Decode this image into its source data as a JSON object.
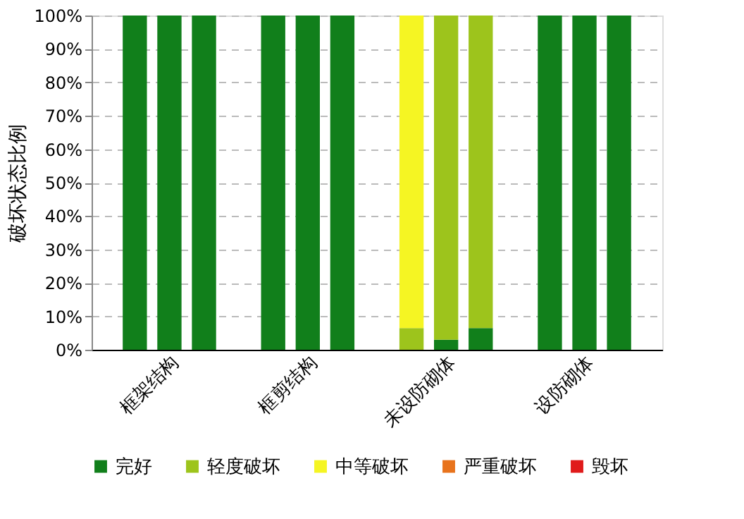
{
  "chart_data": {
    "type": "bar",
    "stacked": true,
    "ylabel": "破坏状态比例",
    "categories": [
      null,
      "框架结构",
      null,
      null,
      null,
      "框剪结构",
      null,
      null,
      null,
      "未设防砌体",
      null,
      null,
      null,
      "设防砌体",
      null
    ],
    "series": [
      {
        "name": "完好",
        "color": "#117f1b",
        "values": [
          100,
          100,
          100,
          null,
          100,
          100,
          100,
          null,
          0,
          3,
          6.5,
          null,
          100,
          100,
          100
        ]
      },
      {
        "name": "轻度破坏",
        "color": "#9dc41c",
        "values": [
          0,
          0,
          0,
          null,
          0,
          0,
          0,
          null,
          6.5,
          97,
          93.5,
          null,
          0,
          0,
          0
        ]
      },
      {
        "name": "中等破坏",
        "color": "#f5f523",
        "values": [
          0,
          0,
          0,
          null,
          0,
          0,
          0,
          null,
          93.5,
          0,
          0,
          null,
          0,
          0,
          0
        ]
      },
      {
        "name": "严重破坏",
        "color": "#e8731c",
        "values": [
          0,
          0,
          0,
          null,
          0,
          0,
          0,
          null,
          0,
          0,
          0,
          null,
          0,
          0,
          0
        ]
      },
      {
        "name": "毁坏",
        "color": "#e01b1b",
        "values": [
          0,
          0,
          0,
          null,
          0,
          0,
          0,
          null,
          0,
          0,
          0,
          null,
          0,
          0,
          0
        ]
      }
    ],
    "ylim": [
      0,
      100
    ],
    "yticks": [
      {
        "value": 0,
        "label": "0%"
      },
      {
        "value": 10,
        "label": "10%"
      },
      {
        "value": 20,
        "label": "20%"
      },
      {
        "value": 30,
        "label": "30%"
      },
      {
        "value": 40,
        "label": "40%"
      },
      {
        "value": 50,
        "label": "50%"
      },
      {
        "value": 60,
        "label": "60%"
      },
      {
        "value": 70,
        "label": "70%"
      },
      {
        "value": 80,
        "label": "80%"
      },
      {
        "value": 90,
        "label": "90%"
      },
      {
        "value": 100,
        "label": "100%"
      }
    ],
    "grid": "y",
    "legend": "bottom"
  }
}
